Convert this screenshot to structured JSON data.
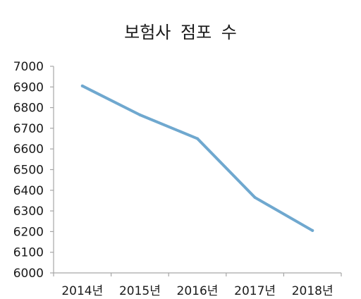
{
  "chart_data": {
    "type": "line",
    "title": "보험사 점포 수",
    "xlabel": "",
    "ylabel": "",
    "categories": [
      "2014년",
      "2015년",
      "2016년",
      "2017년",
      "2018년"
    ],
    "series": [
      {
        "values": [
          6905,
          6765,
          6650,
          6365,
          6205
        ]
      }
    ],
    "ylim": [
      6000,
      7000
    ],
    "yticks": [
      6000,
      6100,
      6200,
      6300,
      6400,
      6500,
      6600,
      6700,
      6800,
      6900,
      7000
    ],
    "grid": false,
    "legend": "none",
    "colors": {
      "line": "#6fa8cf",
      "axis": "#a6a6a6"
    }
  }
}
